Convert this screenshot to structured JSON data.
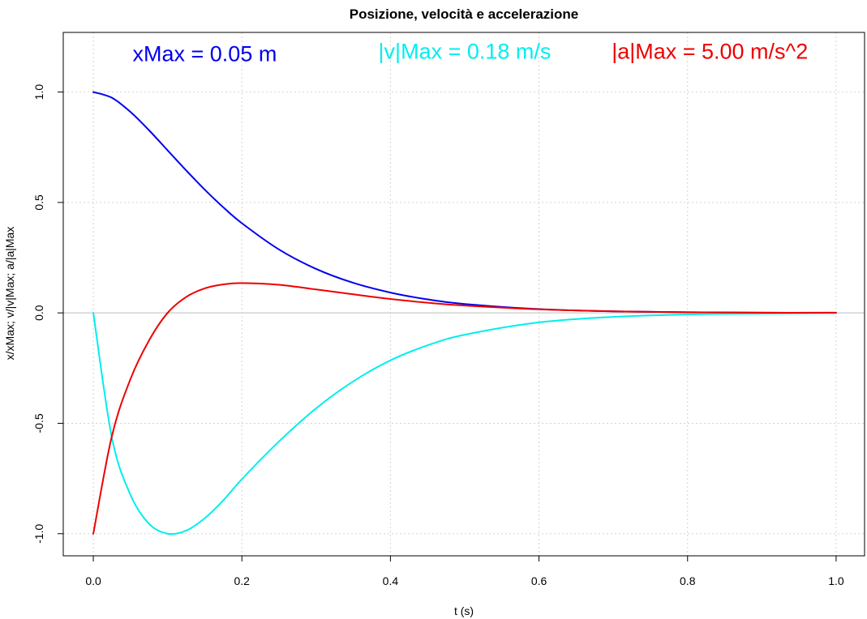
{
  "chart_data": {
    "type": "line",
    "title": "Posizione, velocità e accelerazione",
    "xlabel": "t (s)",
    "ylabel": "x/xMax;  v/|v|Max;  a/|a|Max",
    "xlim": [
      0,
      1
    ],
    "ylim": [
      -1.1,
      1.27
    ],
    "xticks": [
      0,
      0.2,
      0.4,
      0.6,
      0.8,
      1
    ],
    "xtick_labels": [
      "0.0",
      "0.2",
      "0.4",
      "0.6",
      "0.8",
      "1.0"
    ],
    "yticks": [
      -1,
      -0.5,
      0,
      0.5,
      1
    ],
    "ytick_labels": [
      "-1.0",
      "-0.5",
      "0.0",
      "0.5",
      "1.0"
    ],
    "grid": true,
    "x": [
      0,
      0.025,
      0.05,
      0.075,
      0.1,
      0.125,
      0.15,
      0.175,
      0.2,
      0.25,
      0.3,
      0.35,
      0.4,
      0.45,
      0.5,
      0.6,
      0.7,
      0.8,
      0.9,
      1.0
    ],
    "series": [
      {
        "color": "#0000ee",
        "values": [
          1.0,
          0.974,
          0.91,
          0.827,
          0.736,
          0.645,
          0.558,
          0.478,
          0.406,
          0.287,
          0.199,
          0.136,
          0.092,
          0.061,
          0.04,
          0.017,
          0.007,
          0.003,
          0.001,
          0.0
        ]
      },
      {
        "color": "#00eeee",
        "values": [
          0.0,
          -0.565,
          -0.824,
          -0.955,
          -1.0,
          -0.986,
          -0.93,
          -0.849,
          -0.753,
          -0.582,
          -0.432,
          -0.31,
          -0.215,
          -0.147,
          -0.099,
          -0.043,
          -0.018,
          -0.007,
          -0.003,
          -0.001
        ]
      },
      {
        "color": "#ee0000",
        "values": [
          -1.0,
          -0.558,
          -0.3,
          -0.125,
          0.0,
          0.072,
          0.111,
          0.129,
          0.135,
          0.127,
          0.106,
          0.084,
          0.063,
          0.046,
          0.033,
          0.016,
          0.007,
          0.003,
          0.001,
          0.001
        ]
      }
    ],
    "annotations": [
      {
        "text": "xMax = 0.05 m",
        "color": "#0000ee",
        "x": 0.15,
        "y": 1.14
      },
      {
        "text": "|v|Max = 0.18 m/s",
        "color": "#00eeee",
        "x": 0.5,
        "y": 1.15
      },
      {
        "text": "|a|Max = 5.00 m/s^2",
        "color": "#ee0000",
        "x": 0.83,
        "y": 1.15
      }
    ]
  }
}
